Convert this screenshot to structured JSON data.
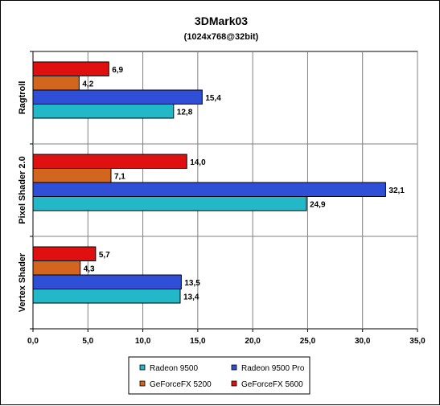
{
  "chart_data": {
    "type": "bar",
    "orientation": "horizontal",
    "title": "3DMark03",
    "subtitle": "(1024x768@32bit)",
    "categories": [
      "Ragtroll",
      "Pixel Shader 2.0",
      "Vertex Shader"
    ],
    "series": [
      {
        "name": "Radeon 9500",
        "color": "#22b8c8",
        "values": [
          12.8,
          24.9,
          13.4
        ]
      },
      {
        "name": "Radeon 9500 Pro",
        "color": "#2f4fd6",
        "values": [
          15.4,
          32.1,
          13.5
        ]
      },
      {
        "name": "GeForceFX 5200",
        "color": "#d2661e",
        "values": [
          4.2,
          7.1,
          4.3
        ]
      },
      {
        "name": "GeForceFX 5600",
        "color": "#e01010",
        "values": [
          6.9,
          14.0,
          5.7
        ]
      }
    ],
    "xlim": [
      0,
      35
    ],
    "x_ticks": [
      0,
      5,
      10,
      15,
      20,
      25,
      30,
      35
    ],
    "x_tick_labels": [
      "0,0",
      "5,0",
      "10,0",
      "15,0",
      "20,0",
      "25,0",
      "30,0",
      "35,0"
    ],
    "data_labels": [
      [
        "12,8",
        "24,9",
        "13,4"
      ],
      [
        "15,4",
        "32,1",
        "13,5"
      ],
      [
        "4,2",
        "7,1",
        "4,3"
      ],
      [
        "6,9",
        "14,0",
        "5,7"
      ]
    ],
    "grid": true,
    "legend_position": "bottom",
    "xlabel": "",
    "ylabel": ""
  }
}
